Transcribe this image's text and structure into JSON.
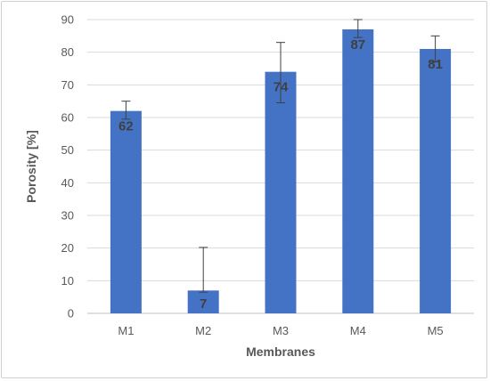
{
  "chart_data": {
    "type": "bar",
    "categories": [
      "M1",
      "M2",
      "M3",
      "M4",
      "M5"
    ],
    "values": [
      62,
      7,
      74,
      87,
      81
    ],
    "value_labels": [
      "62",
      "7",
      "74",
      "87",
      "81"
    ],
    "error_high": [
      65,
      20.2,
      83,
      90,
      85
    ],
    "error_low": [
      59.5,
      6.5,
      64.5,
      84.5,
      77
    ],
    "xlabel": "Membranes",
    "ylabel": "Porosity [%]",
    "ylim": [
      0,
      90
    ],
    "yticks": [
      "0",
      "10",
      "20",
      "30",
      "40",
      "50",
      "60",
      "70",
      "80",
      "90"
    ],
    "grid": true,
    "legend": "none",
    "bar_color": "#4472C4",
    "grid_color": "#d9d9d9",
    "text_color": "#595959"
  }
}
